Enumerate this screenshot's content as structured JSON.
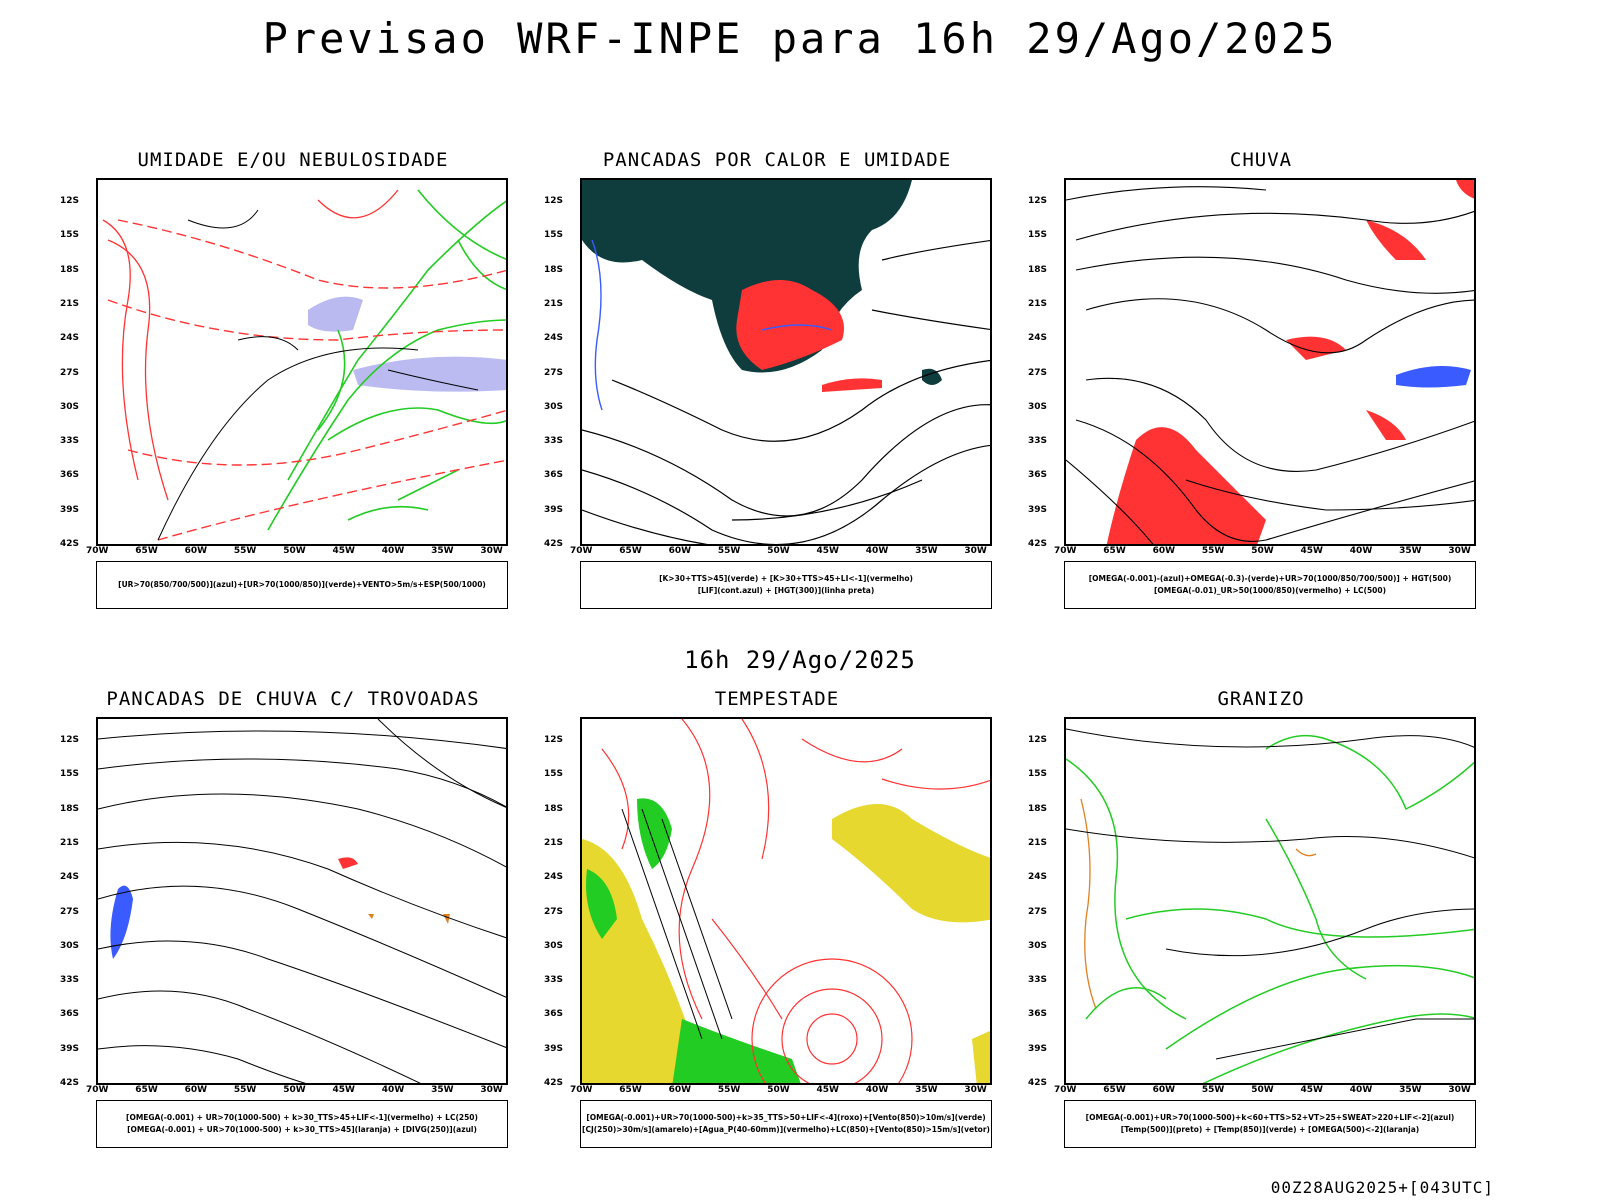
{
  "header": {
    "title": "Previsao WRF-INPE  para 16h 29/Ago/2025"
  },
  "mid_title": "16h 29/Ago/2025",
  "footer": {
    "stamp": "00Z28AUG2025+[043UTC]"
  },
  "axes": {
    "lat_labels": [
      "12S",
      "15S",
      "18S",
      "21S",
      "24S",
      "27S",
      "30S",
      "33S",
      "36S",
      "39S",
      "42S"
    ],
    "lon_labels": [
      "70W",
      "65W",
      "60W",
      "55W",
      "50W",
      "45W",
      "40W",
      "35W",
      "30W"
    ]
  },
  "colors": {
    "blue": "#3a5bff",
    "green": "#22cc22",
    "red": "#ff3333",
    "dark_teal": "#0f3d3d",
    "yellow": "#e6d82f",
    "lavender": "#aaaaee",
    "orange": "#e08020"
  },
  "panels": [
    {
      "title": "UMIDADE E/OU NEBULOSIDADE",
      "legend": [
        "[UR>70(850/700/500)](azul)+[UR>70(1000/850)](verde)+VENTO>5m/s+ESP(500/1000)"
      ]
    },
    {
      "title": "PANCADAS POR CALOR E UMIDADE",
      "legend": [
        "[K>30+TTS>45](verde) + [K>30+TTS>45+LI<-1](vermelho)",
        "[LIF](cont.azul) + [HGT(300)](linha preta)"
      ]
    },
    {
      "title": "CHUVA",
      "legend": [
        "[OMEGA(-0.001)-(azul)+OMEGA(-0.3)-(verde)+UR>70(1000/850/700/500)] + HGT(500)",
        "[OMEGA(-0.01)_UR>50(1000/850)(vermelho) + LC(500)"
      ]
    },
    {
      "title": "PANCADAS DE CHUVA C/ TROVOADAS",
      "legend": [
        "[OMEGA(-0.001) + UR>70(1000-500) + k>30_TTS>45+LIF<-1](vermelho) + LC(250)",
        "[OMEGA(-0.001) + UR>70(1000-500) + k>30_TTS>45](laranja) + [DIVG(250)](azul)"
      ]
    },
    {
      "title": "TEMPESTADE",
      "legend": [
        "[OMEGA(-0.001)+UR>70(1000-500)+k>35_TTS>50+LIF<-4](roxo)+[Vento(850)>10m/s](verde)",
        "[CJ(250)>30m/s](amarelo)+[Agua_P(40-60mm)](vermelho)+LC(850)+[Vento(850)>15m/s](vetor)"
      ]
    },
    {
      "title": "GRANIZO",
      "legend": [
        "[OMEGA(-0.001)+UR>70(1000-500)+k<60+TTS>52+VT>25+SWEAT>220+LIF<-2](azul)",
        "[Temp(500)](preto) + [Temp(850)](verde) + [OMEGA(500)<-2](laranja)"
      ]
    }
  ]
}
